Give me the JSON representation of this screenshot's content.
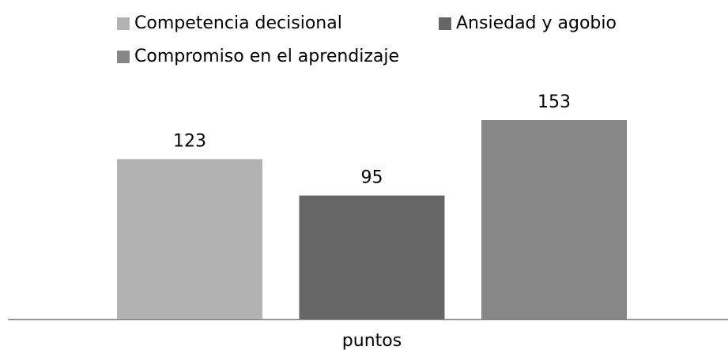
{
  "chart_data": {
    "type": "bar",
    "categories": [
      "puntos"
    ],
    "series": [
      {
        "name": "Competencia decisional",
        "color": "#b3b3b3",
        "values": [
          123
        ]
      },
      {
        "name": "Ansiedad y agobio",
        "color": "#666666",
        "values": [
          95
        ]
      },
      {
        "name": "Compromiso en el aprendizaje",
        "color": "#878787",
        "values": [
          153
        ]
      }
    ],
    "legend": "top"
  }
}
